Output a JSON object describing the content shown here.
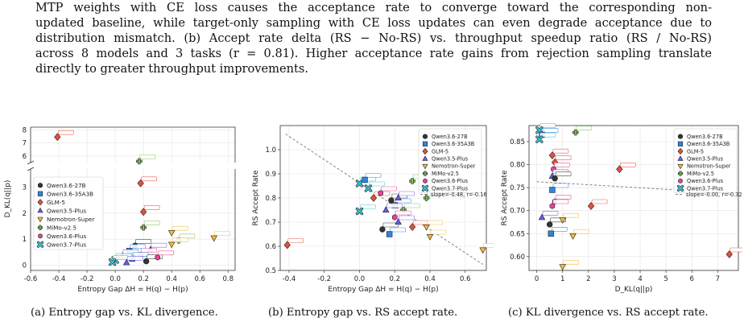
{
  "caption": {
    "lines": [
      "MTP weights with CE loss causes the acceptance rate to converge toward the corresponding non-",
      "updated baseline, while target-only sampling with CE loss updates can even degrade acceptance due to",
      "distribution mismatch. (b) Accept rate delta (RS − No-RS) vs. throughput speedup ratio (RS / No-RS)",
      "across 8 models and 3 tasks (r = 0.81). Higher acceptance rate gains from rejection sampling translate",
      "directly to greater throughput improvements."
    ]
  },
  "legend": {
    "models": [
      "Qwen3.6-27B",
      "Qwen3.6-35A3B",
      "GLM-5",
      "Qwen3.5-Plus",
      "Nemotron-Super",
      "MiMo-v2.5",
      "Qwen3.6-Plus",
      "Qwen3.7-Plus"
    ],
    "colors": [
      "#333333",
      "#2e86de",
      "#e55039",
      "#6c5ce7",
      "#f6b93b",
      "#78c850",
      "#e84393",
      "#3dc1d3"
    ],
    "markers": [
      "circle",
      "square",
      "diamond",
      "triangle-up",
      "triangle-down",
      "plus",
      "hexagon",
      "x"
    ]
  },
  "subcaptions": [
    "(a) Entropy gap vs. KL divergence.",
    "(b) Entropy gap vs. RS accept rate.",
    "(c) KL divergence vs. RS accept rate."
  ],
  "chart_data": [
    {
      "type": "scatter",
      "xlabel": "Entropy Gap ΔH = H(q) − H(p)",
      "ylabel": "D_KL(q||p)",
      "xlim": [
        -0.6,
        0.85
      ],
      "xticks": [
        "-0.6",
        "-0.4",
        "-0.2",
        "0.0",
        "0.2",
        "0.4",
        "0.6",
        "0.8"
      ],
      "yticks_lower": [
        "0",
        "1",
        "2",
        "3"
      ],
      "yticks_upper": [
        "6",
        "7",
        "8"
      ],
      "broken_axis": true,
      "grid": true,
      "legend_position": "middle-left",
      "points": [
        {
          "x": -0.41,
          "y": 7.45,
          "model": 2
        },
        {
          "x": 0.17,
          "y": 5.6,
          "model": 5
        },
        {
          "x": 0.18,
          "y": 3.15,
          "model": 2
        },
        {
          "x": 0.2,
          "y": 2.05,
          "model": 2
        },
        {
          "x": 0.2,
          "y": 1.45,
          "model": 5
        },
        {
          "x": 0.4,
          "y": 1.25,
          "model": 4
        },
        {
          "x": 0.7,
          "y": 1.05,
          "model": 4
        },
        {
          "x": 0.45,
          "y": 0.95,
          "model": 5
        },
        {
          "x": 0.4,
          "y": 0.8,
          "model": 4
        },
        {
          "x": 0.14,
          "y": 0.75,
          "model": 0
        },
        {
          "x": 0.25,
          "y": 0.6,
          "model": 3
        },
        {
          "x": 0.1,
          "y": 0.55,
          "model": 1
        },
        {
          "x": 0.18,
          "y": 0.4,
          "model": 6
        },
        {
          "x": 0.05,
          "y": 0.35,
          "model": 3
        },
        {
          "x": 0.12,
          "y": 0.25,
          "model": 1
        },
        {
          "x": 0.0,
          "y": 0.2,
          "model": 7
        },
        {
          "x": -0.02,
          "y": 0.12,
          "model": 7
        },
        {
          "x": 0.22,
          "y": 0.15,
          "model": 0
        },
        {
          "x": 0.3,
          "y": 0.3,
          "model": 6
        },
        {
          "x": 0.08,
          "y": 0.1,
          "model": 3
        }
      ]
    },
    {
      "type": "scatter",
      "xlabel": "Entropy Gap ΔH = H(q) − H(p)",
      "ylabel": "RS Accept Rate",
      "xlim": [
        -0.45,
        0.72
      ],
      "ylim": [
        0.5,
        1.1
      ],
      "xticks": [
        "-0.4",
        "-0.2",
        "0.0",
        "0.2",
        "0.4",
        "0.6"
      ],
      "yticks": [
        "0.5",
        "0.6",
        "0.7",
        "0.8",
        "0.9",
        "1.0"
      ],
      "grid": true,
      "legend_position": "top-right",
      "fit_label": "slope=-0.48, r=-0.16",
      "fit_line": {
        "x0": -0.42,
        "y0": 1.065,
        "x1": 0.7,
        "y1": 0.525
      },
      "points": [
        {
          "x": -0.41,
          "y": 0.605,
          "model": 2
        },
        {
          "x": 0.0,
          "y": 0.86,
          "model": 7
        },
        {
          "x": 0.03,
          "y": 0.875,
          "model": 1
        },
        {
          "x": 0.05,
          "y": 0.84,
          "model": 7
        },
        {
          "x": 0.08,
          "y": 0.8,
          "model": 2
        },
        {
          "x": 0.0,
          "y": 0.745,
          "model": 7
        },
        {
          "x": 0.12,
          "y": 0.82,
          "model": 6
        },
        {
          "x": 0.18,
          "y": 0.79,
          "model": 0
        },
        {
          "x": 0.2,
          "y": 0.77,
          "model": 1
        },
        {
          "x": 0.22,
          "y": 0.8,
          "model": 3
        },
        {
          "x": 0.25,
          "y": 0.75,
          "model": 5
        },
        {
          "x": 0.3,
          "y": 0.87,
          "model": 5
        },
        {
          "x": 0.38,
          "y": 0.8,
          "model": 5
        },
        {
          "x": 0.13,
          "y": 0.67,
          "model": 0
        },
        {
          "x": 0.17,
          "y": 0.65,
          "model": 1
        },
        {
          "x": 0.2,
          "y": 0.72,
          "model": 6
        },
        {
          "x": 0.22,
          "y": 0.7,
          "model": 3
        },
        {
          "x": 0.3,
          "y": 0.68,
          "model": 2
        },
        {
          "x": 0.38,
          "y": 0.68,
          "model": 4
        },
        {
          "x": 0.4,
          "y": 0.64,
          "model": 4
        },
        {
          "x": 0.7,
          "y": 0.585,
          "model": 4
        },
        {
          "x": 0.15,
          "y": 0.75,
          "model": 3
        }
      ]
    },
    {
      "type": "scatter",
      "xlabel": "D_KL(q||p)",
      "ylabel": "RS Accept Rate",
      "xlim": [
        -0.3,
        7.8
      ],
      "ylim": [
        0.57,
        0.885
      ],
      "xticks": [
        "0",
        "1",
        "2",
        "3",
        "4",
        "5",
        "6",
        "7"
      ],
      "yticks": [
        "0.60",
        "0.65",
        "0.70",
        "0.75",
        "0.80",
        "0.85"
      ],
      "grid": true,
      "legend_position": "top-right",
      "fit_label": "slope=-0.00, r=-0.32",
      "fit_line": {
        "x0": 0.0,
        "y0": 0.763,
        "x1": 7.5,
        "y1": 0.738
      },
      "points": [
        {
          "x": 0.1,
          "y": 0.875,
          "model": 7
        },
        {
          "x": 0.2,
          "y": 0.865,
          "model": 1
        },
        {
          "x": 0.1,
          "y": 0.855,
          "model": 7
        },
        {
          "x": 1.5,
          "y": 0.87,
          "model": 5
        },
        {
          "x": 0.6,
          "y": 0.82,
          "model": 2
        },
        {
          "x": 0.7,
          "y": 0.805,
          "model": 2
        },
        {
          "x": 0.65,
          "y": 0.79,
          "model": 6
        },
        {
          "x": 0.6,
          "y": 0.775,
          "model": 3
        },
        {
          "x": 0.7,
          "y": 0.77,
          "model": 0
        },
        {
          "x": 3.2,
          "y": 0.79,
          "model": 2
        },
        {
          "x": 0.6,
          "y": 0.745,
          "model": 1
        },
        {
          "x": 0.7,
          "y": 0.72,
          "model": 6
        },
        {
          "x": 0.6,
          "y": 0.71,
          "model": 6
        },
        {
          "x": 2.1,
          "y": 0.71,
          "model": 2
        },
        {
          "x": 5.6,
          "y": 0.748,
          "model": 5
        },
        {
          "x": 0.2,
          "y": 0.685,
          "model": 3
        },
        {
          "x": 0.5,
          "y": 0.67,
          "model": 0
        },
        {
          "x": 1.0,
          "y": 0.68,
          "model": 4
        },
        {
          "x": 0.55,
          "y": 0.65,
          "model": 1
        },
        {
          "x": 1.4,
          "y": 0.645,
          "model": 4
        },
        {
          "x": 1.0,
          "y": 0.578,
          "model": 4
        },
        {
          "x": 7.45,
          "y": 0.605,
          "model": 2
        }
      ]
    }
  ]
}
